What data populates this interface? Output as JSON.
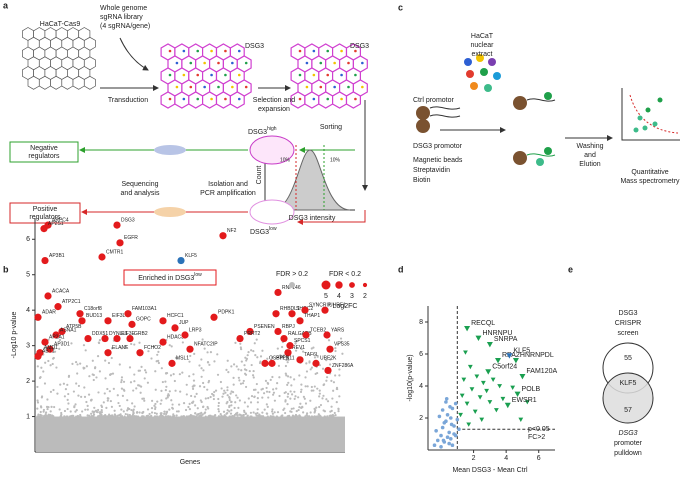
{
  "panel_labels": [
    "a",
    "b",
    "c",
    "d",
    "e"
  ],
  "panel_a": {
    "cell_line": "HaCaT-Cas9",
    "library": [
      "Whole genome",
      "sgRNA library",
      "(4 sgRNA/gene)"
    ],
    "transduction": "Transduction",
    "dsg3_grid": "DSG3",
    "dsg3_selected": "DSG3",
    "selection": [
      "Selection and",
      "expansion"
    ],
    "sorting": "Sorting",
    "high": {
      "text": "DSG3",
      "sup": "high"
    },
    "negative": [
      "Negative",
      "regulators"
    ],
    "sequencing": [
      "Sequencing",
      "and analysis"
    ],
    "isolation": [
      "Isolation and",
      "PCR amplification"
    ],
    "positive": [
      "Positive",
      "regulators"
    ],
    "low": {
      "text": "DSG3",
      "sup": "low"
    },
    "count": "Count",
    "intensity": "DSG3 intensity",
    "pct_left": "10%",
    "pct_right": "10%"
  },
  "panel_c": {
    "extract": [
      "HaCaT",
      "nuclear",
      "extract"
    ],
    "ctrl": "Ctrl promotor",
    "dsg3": "DSG3 promotor",
    "beads": "Magnetic beads",
    "streptavidin": "Streptavidin",
    "biotin": "Biotin",
    "washing": [
      "Washing",
      "and",
      "Elution"
    ],
    "ms": [
      "Quantitative",
      "Mass spectrometry"
    ]
  },
  "chart_data": [
    {
      "type": "scatter",
      "title": {
        "text": "Enriched in DSG3",
        "sup": "low"
      },
      "ylabel": "-Log10 p-value",
      "xlabel": "Genes",
      "ylim": [
        0,
        6.6
      ],
      "yticks": [
        1,
        2,
        3,
        4,
        5,
        6
      ],
      "legend": {
        "ns": "FDR > 0.2",
        "ns_color": "#bbbbbb",
        "sig": "FDR < 0.2",
        "sizes": [
          5,
          4,
          3,
          2
        ],
        "size_title": "Log2FC"
      },
      "labels": [
        "ARPC4",
        "AP2S1",
        "AP3B1",
        "CMTR1",
        "DSG3",
        "EGFR",
        "KLF5",
        "NF2",
        "RNF146",
        "ACACA",
        "ATP2C1",
        "C18orf8",
        "BUD13",
        "ADAR",
        "ATP5B",
        "ASNA1",
        "AP2A1",
        "AP3D1",
        "AMD1",
        "ABT1",
        "FAM103A1",
        "EIF3L",
        "GOPC",
        "DYNLL1",
        "DDX51",
        "EIF3E",
        "GRB2",
        "ELANE",
        "FCHO2",
        "HCFC1",
        "HDAC3",
        "JUP",
        "LRP3",
        "NFATC2IP",
        "MSL1",
        "PDPK1",
        "RHBDL1",
        "SHOC2",
        "SYNCRIP",
        "THAP1",
        "UHRF1",
        "PSENEN",
        "RBPJ",
        "PRRT2",
        "RALGAPB",
        "REV1",
        "PTPN11",
        "OSBPL9",
        "TCEB2",
        "SPCS1",
        "YARS",
        "VPS35",
        "TAF6L",
        "UBE2K",
        "ZNF286A"
      ],
      "values": [
        6.4,
        6.3,
        5.4,
        5.5,
        6.4,
        5.9,
        5.4,
        6.1,
        4.5,
        4.4,
        4.1,
        3.9,
        3.7,
        3.8,
        3.4,
        3.3,
        3.1,
        2.9,
        2.8,
        2.7,
        3.9,
        3.7,
        3.6,
        3.2,
        3.2,
        3.2,
        3.2,
        2.8,
        2.8,
        3.7,
        3.1,
        3.5,
        3.3,
        2.9,
        2.5,
        3.8,
        3.9,
        3.9,
        4.0,
        3.7,
        4.0,
        3.4,
        3.4,
        3.2,
        3.2,
        2.8,
        2.5,
        2.5,
        3.3,
        3.0,
        3.3,
        2.9,
        2.6,
        2.5,
        2.3
      ],
      "color": "#e31a1c",
      "highlight_color": "#2b72b8",
      "highlight": [
        6
      ]
    },
    {
      "type": "scatter",
      "xlabel": "Mean DSG3 - Mean Ctrl",
      "ylabel": "-log10(p-value)",
      "xlim": [
        -0.8,
        7
      ],
      "ylim": [
        0,
        9
      ],
      "xticks": [
        2,
        4,
        6
      ],
      "yticks": [
        2,
        4,
        6,
        8
      ],
      "x_threshold": 1,
      "y_threshold": 1.3,
      "threshold_label": [
        "p<0.05",
        "FC>2"
      ],
      "labels": [
        "RECQL",
        "HNRNPU",
        "SNRPA",
        "RPA2",
        "KLF5",
        "HNRNPDL",
        "C5orf24",
        "FAM120A",
        "POLB",
        "EWSR1"
      ],
      "x": [
        1.6,
        2.3,
        3.0,
        3.5,
        4.2,
        4.6,
        2.9,
        5.0,
        4.7,
        4.1
      ],
      "y": [
        7.6,
        7.0,
        6.6,
        5.6,
        5.9,
        5.6,
        4.9,
        4.6,
        3.5,
        2.8
      ],
      "colors": [
        "#1a9f50",
        "#1a9f50",
        "#1a9f50",
        "#1a9f50",
        "#2b72b8",
        "#1a9f50",
        "#1a9f50",
        "#1a9f50",
        "#1a9f50",
        "#1a9f50"
      ],
      "others": [
        {
          "color": "#1a9f50",
          "marker": "triangle",
          "x": [
            1.5,
            1.8,
            2.2,
            2.6,
            3.2,
            3.6,
            1.4,
            1.9,
            2.4,
            3.0,
            1.6,
            2.1,
            3.4,
            1.3,
            2.8,
            4.4,
            5.3,
            1.2,
            2.5,
            3.8,
            1.7,
            4.9
          ],
          "y": [
            6.1,
            5.2,
            4.6,
            4.2,
            4.4,
            4.0,
            4.4,
            3.8,
            3.3,
            3.0,
            2.9,
            2.4,
            2.5,
            3.4,
            3.7,
            3.9,
            3.0,
            2.2,
            1.9,
            3.2,
            1.6,
            1.9
          ]
        },
        {
          "color": "#7aa6d8",
          "marker": "circle",
          "x": [
            -0.4,
            -0.2,
            0.0,
            0.1,
            0.2,
            0.3,
            0.4,
            0.5,
            0.6,
            0.7,
            0.8,
            0.9,
            1.0,
            -0.3,
            0.1,
            0.3,
            0.5,
            0.7,
            0.9,
            0.2,
            0.4,
            0.6,
            0.0,
            -0.1,
            0.8,
            1.1,
            0.35,
            0.55,
            0.15,
            0.65
          ],
          "y": [
            0.3,
            0.6,
            0.9,
            1.4,
            0.5,
            1.8,
            2.2,
            1.1,
            0.7,
            2.6,
            1.5,
            0.9,
            1.9,
            1.2,
            2.5,
            3.0,
            0.4,
            0.3,
            2.9,
            1.7,
            0.8,
            2.0,
            0.2,
            2.1,
            1.0,
            1.3,
            3.2,
            2.7,
            0.6,
            1.6
          ]
        }
      ]
    }
  ],
  "panel_e": {
    "top": [
      "DSG3",
      "CRISPR",
      "screen"
    ],
    "left_count": 55,
    "shared": "KLF5",
    "right_count": 57,
    "bottom": [
      "DSG3",
      "promoter",
      "pulldown"
    ]
  }
}
